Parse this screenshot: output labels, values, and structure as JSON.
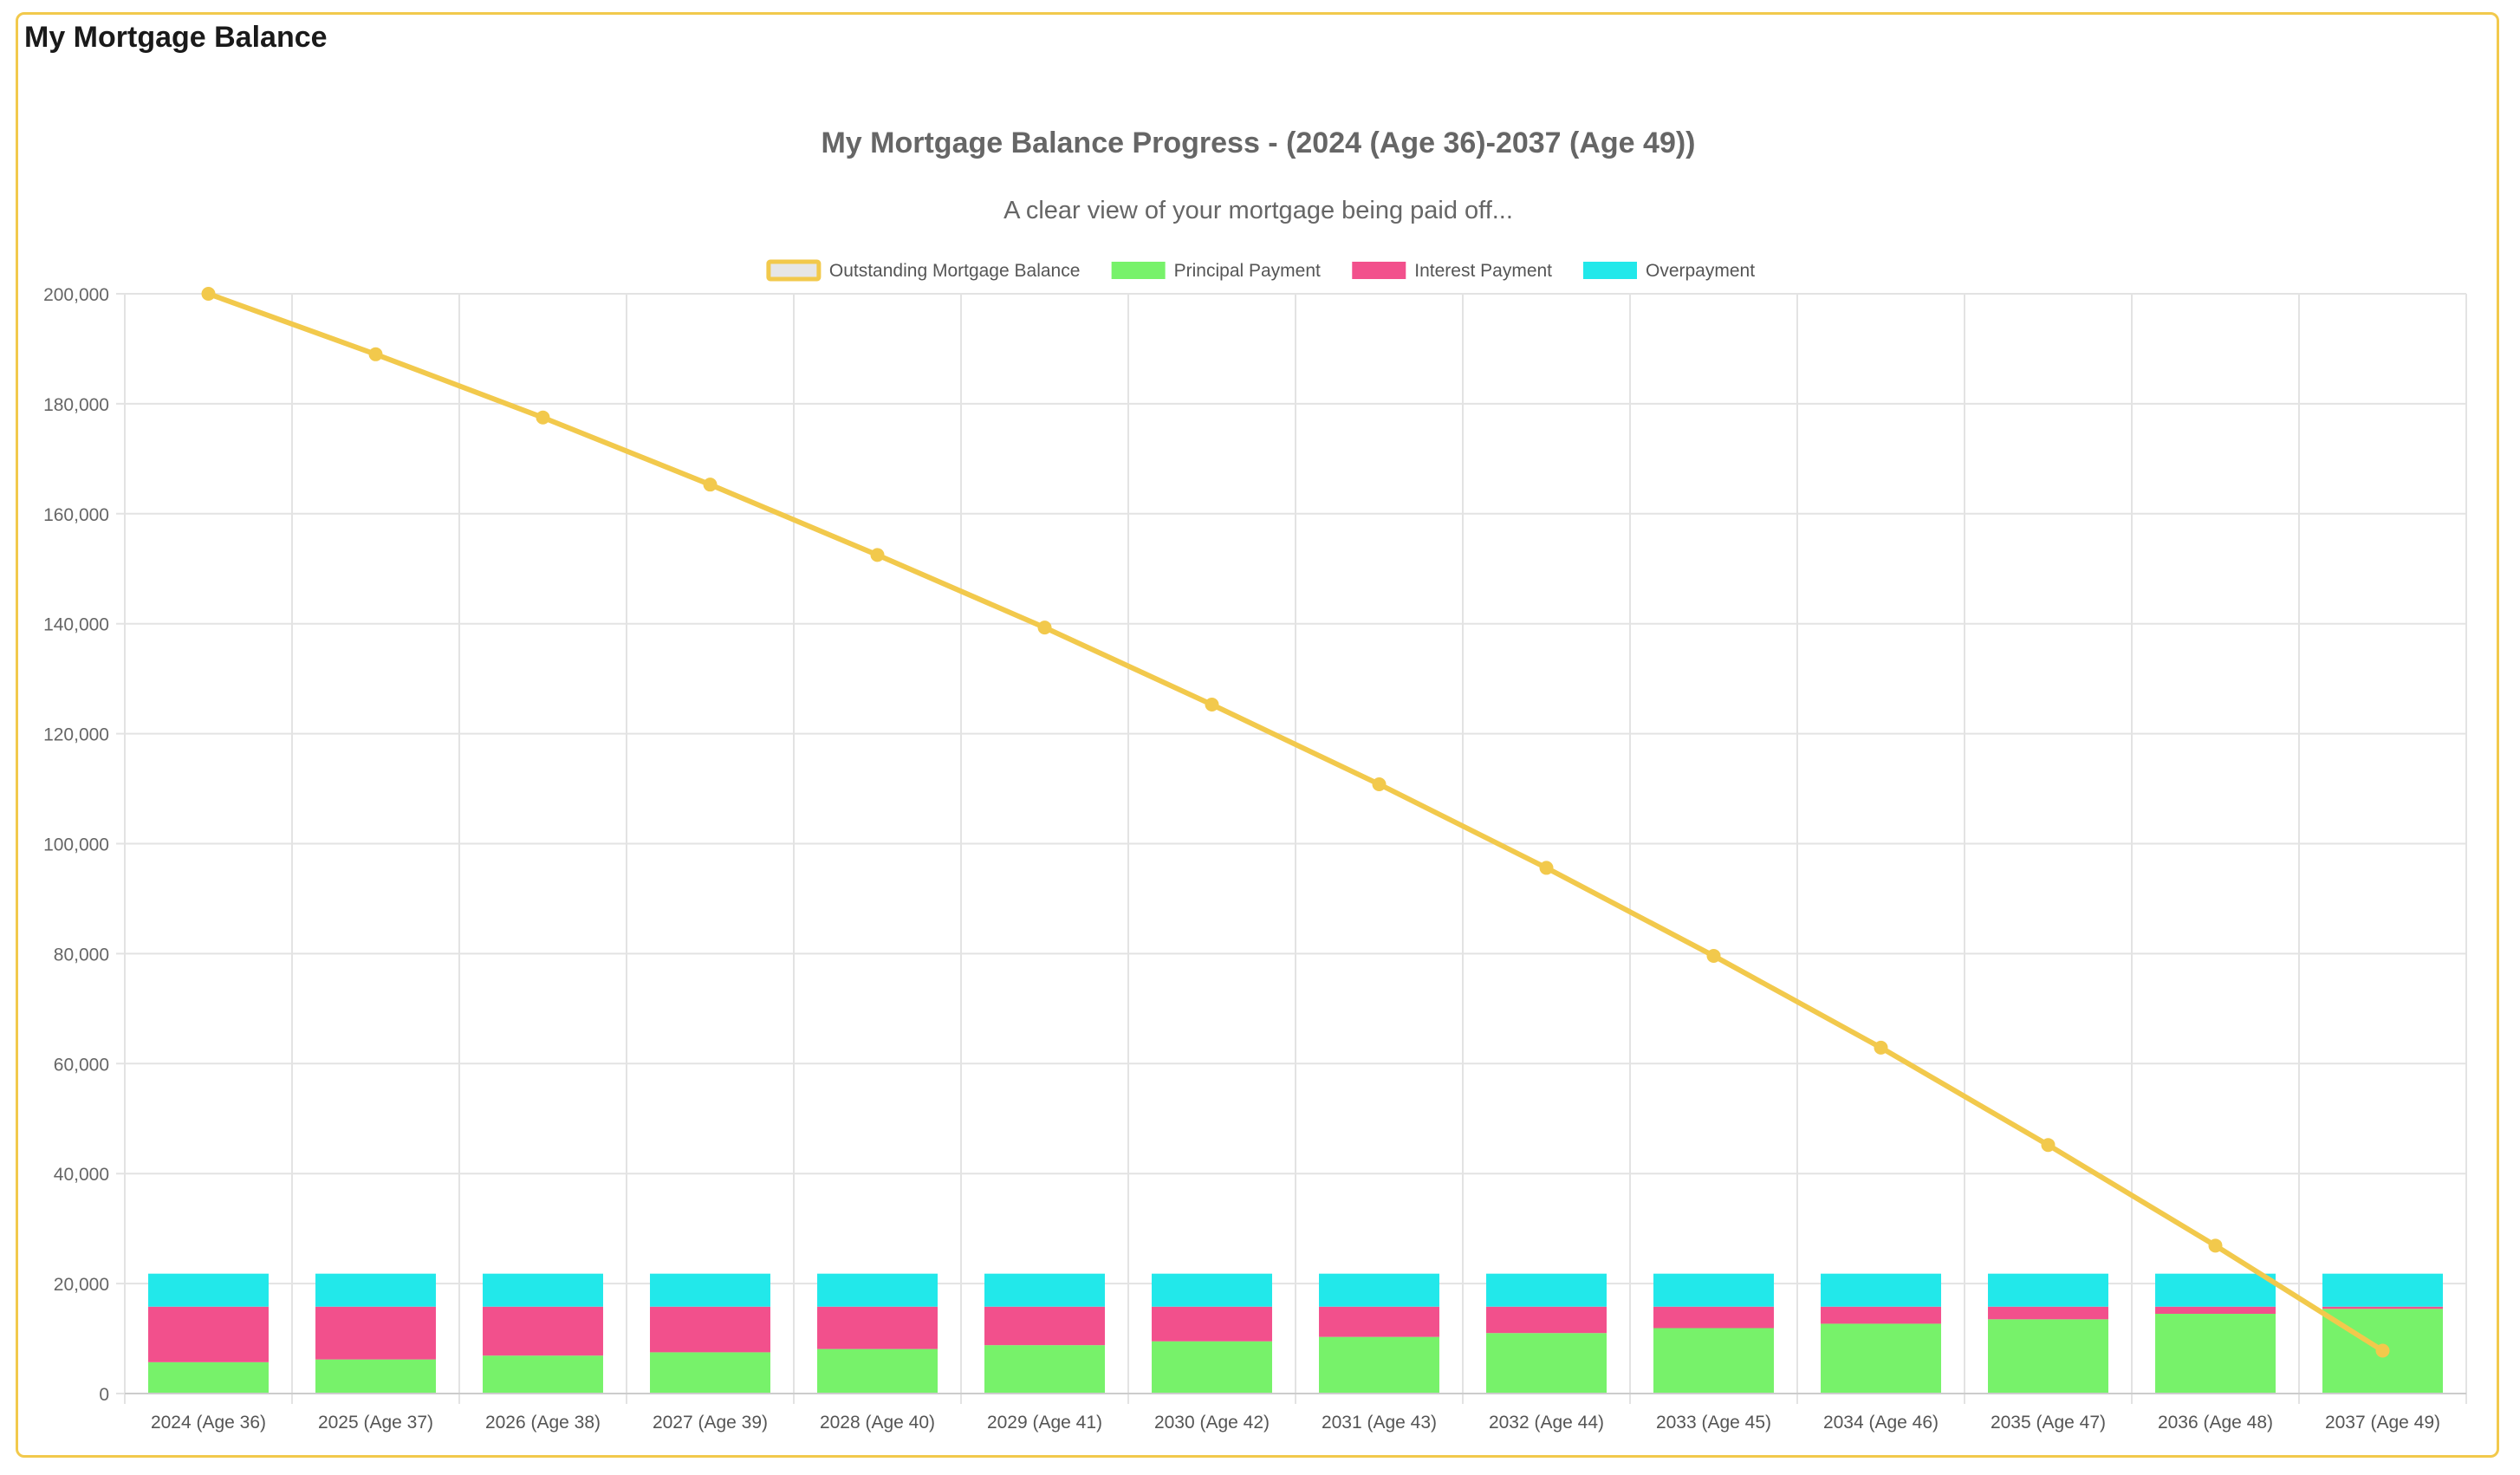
{
  "panel": {
    "title": "My Mortgage Balance"
  },
  "colors": {
    "border": "#f2c94c",
    "line": "#f2c94c",
    "principal": "#77f26a",
    "interest": "#f2508c",
    "overpayment": "#22e8ea",
    "grid": "#e3e3e3"
  },
  "chart_data": {
    "type": "bar",
    "title": "My Mortgage Balance Progress - (2024 (Age 36)-2037 (Age 49))",
    "subtitle": "A clear view of your mortgage being paid off...",
    "legend_position": "top",
    "grid": true,
    "stacked": true,
    "ylim": [
      0,
      200000
    ],
    "y_ticks": [
      "0",
      "20,000",
      "40,000",
      "60,000",
      "80,000",
      "100,000",
      "120,000",
      "140,000",
      "160,000",
      "180,000",
      "200,000"
    ],
    "categories": [
      "2024 (Age 36)",
      "2025 (Age 37)",
      "2026 (Age 38)",
      "2027 (Age 39)",
      "2028 (Age 40)",
      "2029 (Age 41)",
      "2030 (Age 42)",
      "2031 (Age 43)",
      "2032 (Age 44)",
      "2033 (Age 45)",
      "2034 (Age 46)",
      "2035 (Age 47)",
      "2036 (Age 48)",
      "2037 (Age 49)"
    ],
    "series": [
      {
        "name": "Outstanding Mortgage Balance",
        "type": "line",
        "color": "#f2c94c",
        "values": [
          200000,
          189000,
          177500,
          165300,
          152500,
          139300,
          125300,
          110800,
          95600,
          79600,
          62900,
          45200,
          26900,
          7800
        ]
      },
      {
        "name": "Principal Payment",
        "type": "bar",
        "color": "#77f26a",
        "values": [
          5700,
          6200,
          6900,
          7500,
          8100,
          8800,
          9500,
          10300,
          11000,
          11900,
          12700,
          13500,
          14500,
          15400
        ]
      },
      {
        "name": "Interest Payment",
        "type": "bar",
        "color": "#f2508c",
        "values": [
          10100,
          9600,
          8900,
          8300,
          7700,
          7000,
          6300,
          5500,
          4800,
          3900,
          3100,
          2300,
          1300,
          400
        ]
      },
      {
        "name": "Overpayment",
        "type": "bar",
        "color": "#22e8ea",
        "values": [
          6000,
          6000,
          6000,
          6000,
          6000,
          6000,
          6000,
          6000,
          6000,
          6000,
          6000,
          6000,
          6000,
          6000
        ]
      }
    ]
  }
}
